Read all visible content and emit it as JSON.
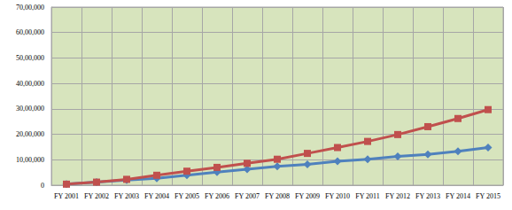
{
  "chart_data": {
    "type": "line",
    "categories": [
      "FY 2001",
      "FY 2002",
      "FY 2003",
      "FY 2004",
      "FY 2005",
      "FY 2006",
      "FY 2007",
      "FY 2008",
      "FY 2009",
      "FY 2010",
      "FY 2011",
      "FY 2012",
      "FY 2013",
      "FY 2014",
      "FY 2015"
    ],
    "series": [
      {
        "color": "#4F81BD",
        "marker": "diamond",
        "values": [
          40000,
          120000,
          200000,
          270000,
          390000,
          510000,
          630000,
          740000,
          820000,
          940000,
          1020000,
          1130000,
          1210000,
          1330000,
          1480000
        ]
      },
      {
        "color": "#C0504D",
        "marker": "square",
        "values": [
          40000,
          120000,
          230000,
          390000,
          550000,
          700000,
          860000,
          1020000,
          1250000,
          1480000,
          1720000,
          1990000,
          2300000,
          2620000,
          2970000
        ]
      }
    ],
    "ylim": [
      0,
      7000000
    ],
    "yticks": [
      0,
      {
        "value": 1000000,
        "label": "10,00,000"
      },
      {
        "value": 2000000,
        "label": "20,00,000"
      },
      {
        "value": 3000000,
        "label": "30,00,000"
      },
      {
        "value": 4000000,
        "label": "40,00,000"
      },
      {
        "value": 5000000,
        "label": "50,00,000"
      },
      {
        "value": 6000000,
        "label": "60,00,000"
      },
      {
        "value": 7000000,
        "label": "70,00,000"
      }
    ],
    "grid": true
  }
}
